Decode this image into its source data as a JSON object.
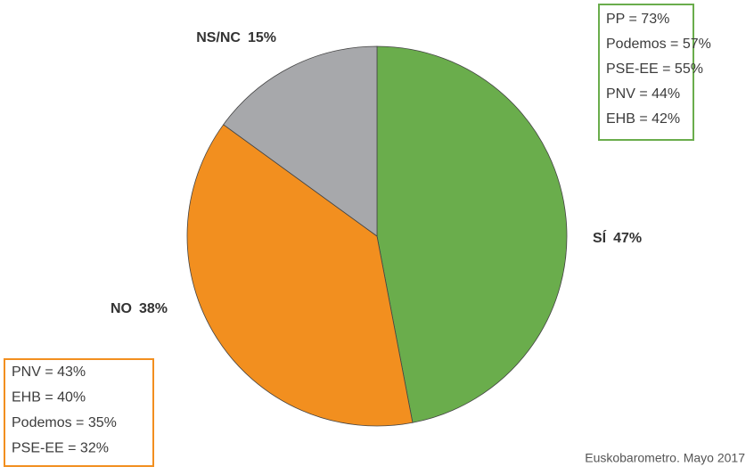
{
  "chart_data": {
    "type": "pie",
    "categories": [
      "SÍ",
      "NO",
      "NS/NC"
    ],
    "values": [
      47,
      38,
      15
    ],
    "value_labels": [
      "47%",
      "38%",
      "15%"
    ],
    "colors": [
      "#6aad4c",
      "#f28f1f",
      "#a7a8ab"
    ],
    "annotations": [
      {
        "color": "#6aad4c",
        "lines": [
          "PP = 73%",
          "Podemos = 57%",
          "PSE-EE = 55%",
          "PNV = 44%",
          "EHB = 42%"
        ]
      },
      {
        "color": "#f28f1f",
        "lines": [
          "PNV = 43%",
          "EHB = 40%",
          "Podemos = 35%",
          "PSE-EE = 32%"
        ]
      }
    ],
    "source": "Euskobarometro. Mayo 2017"
  }
}
